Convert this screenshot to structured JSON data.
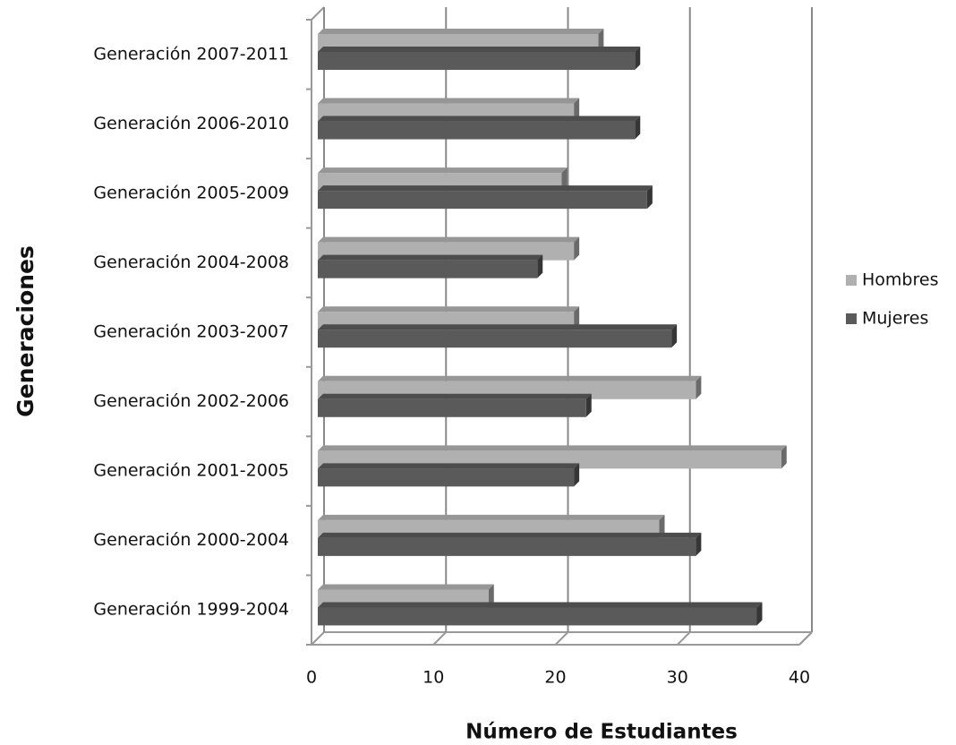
{
  "chart_data": {
    "type": "bar",
    "orientation": "horizontal",
    "xlabel": "Número de Estudiantes",
    "ylabel": "Generaciones",
    "categories": [
      "Generación 2007-2011",
      "Generación 2006-2010",
      "Generación 2005-2009",
      "Generación 2004-2008",
      "Generación 2003-2007",
      "Generación 2002-2006",
      "Generación 2001-2005",
      "Generación 2000-2004",
      "Generación 1999-2004"
    ],
    "series": [
      {
        "name": "Hombres",
        "color": "#b0b0b0",
        "values": [
          23,
          21,
          20,
          21,
          21,
          31,
          38,
          28,
          14
        ]
      },
      {
        "name": "Mujeres",
        "color": "#5a5a5a",
        "values": [
          26,
          26,
          27,
          18,
          29,
          22,
          21,
          31,
          36
        ]
      }
    ],
    "xlim": [
      0,
      40
    ],
    "xticks": [
      0,
      10,
      20,
      30,
      40
    ],
    "grid": true,
    "legend": "right"
  }
}
